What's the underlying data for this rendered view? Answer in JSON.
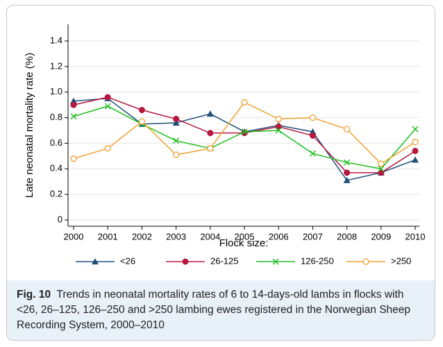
{
  "chart_data": {
    "type": "line",
    "y_label": "Late neonatal mortality rate (%)",
    "x_label": "Flock size:",
    "x": [
      2000,
      2001,
      2002,
      2003,
      2004,
      2005,
      2006,
      2007,
      2008,
      2009,
      2010
    ],
    "xlim": [
      2000,
      2010
    ],
    "xticks": [
      2000,
      2001,
      2002,
      2003,
      2004,
      2005,
      2006,
      2007,
      2008,
      2009,
      2010
    ],
    "ylim": [
      0,
      1.4
    ],
    "yticks": [
      0,
      0.2,
      0.4,
      0.6,
      0.8,
      {
        "value": 1,
        "label": "1.0"
      },
      1.2,
      1.4
    ],
    "grid": true,
    "legend": "bottom",
    "series": [
      {
        "name": "<26",
        "color": "#1f4e79",
        "marker": "triangle",
        "values": [
          0.93,
          0.95,
          0.75,
          0.76,
          0.83,
          0.69,
          0.74,
          0.69,
          0.31,
          0.37,
          0.47
        ]
      },
      {
        "name": "26-125",
        "color": "#b5173f",
        "marker": "circle",
        "values": [
          0.9,
          0.96,
          0.86,
          0.79,
          0.68,
          0.68,
          0.73,
          0.66,
          0.37,
          0.37,
          0.54
        ]
      },
      {
        "name": "126-250",
        "color": "#1ebd1e",
        "marker": "x",
        "values": [
          0.81,
          0.89,
          0.75,
          0.62,
          0.56,
          0.69,
          0.7,
          0.52,
          0.45,
          0.4,
          0.71
        ]
      },
      {
        "name": ">250",
        "color": "#f0a030",
        "marker": "open-circle",
        "values": [
          0.48,
          0.56,
          0.77,
          0.51,
          0.56,
          0.92,
          0.79,
          0.8,
          0.71,
          0.44,
          0.61
        ]
      }
    ]
  },
  "caption": {
    "label": "Fig. 10",
    "text": "Trends in neonatal mortality rates of 6 to 14-days-old lambs in flocks with <26, 26–125, 126–250 and >250 lambing ewes registered in the Norwegian Sheep Recording System, 2000–2010"
  }
}
